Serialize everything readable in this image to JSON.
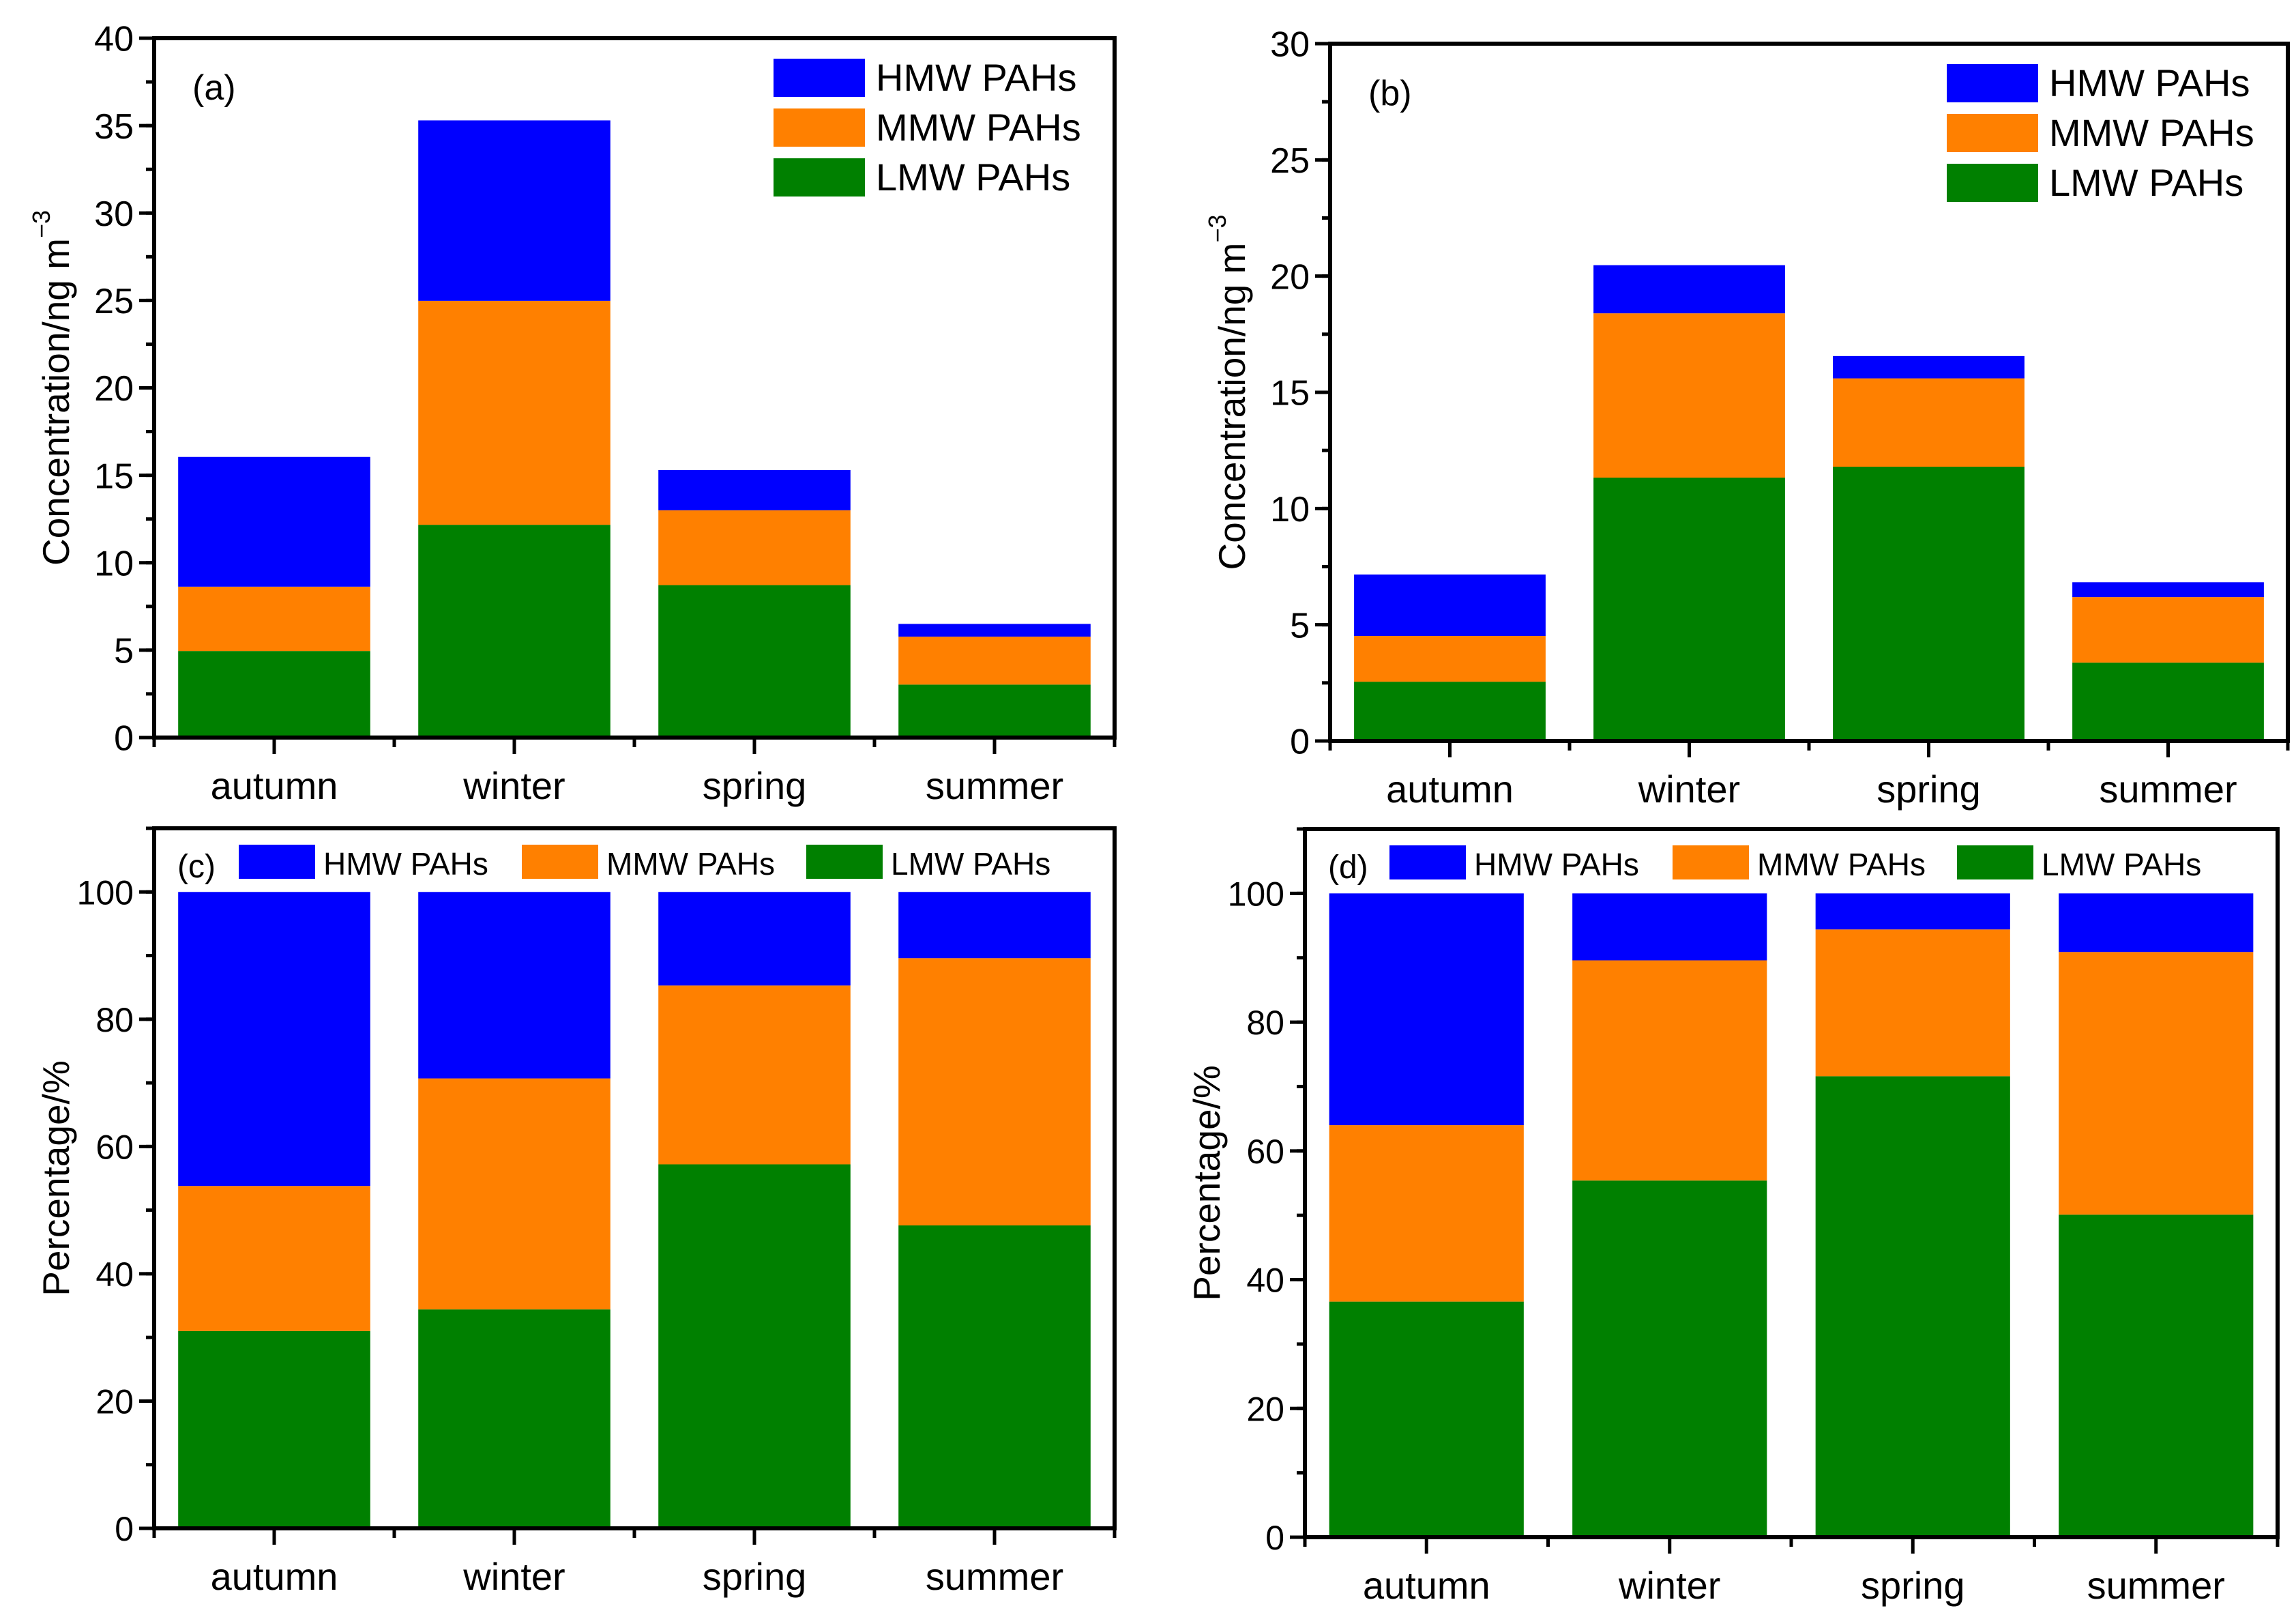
{
  "colors": {
    "HMW": "#0000FF",
    "MMW": "#FF8000",
    "LMW": "#008000",
    "axis": "#000000"
  },
  "chart_data": [
    {
      "panel": "(a)",
      "type": "bar",
      "stacked": true,
      "categories": [
        "autumn",
        "winter",
        "spring",
        "summer"
      ],
      "ylabel": "Concentration/ng m",
      "ylabel_sup": "−3",
      "ylim": [
        0,
        40
      ],
      "yticks": [
        0,
        5,
        10,
        15,
        20,
        25,
        30,
        35,
        40
      ],
      "yminor": 2.5,
      "legend": {
        "placement": "top-right",
        "layout": "vertical",
        "order": [
          "HMW",
          "MMW",
          "LMW"
        ]
      },
      "series": [
        {
          "key": "LMW",
          "name": "LMW PAHs",
          "values": [
            4.95,
            12.17,
            8.72,
            3.03
          ]
        },
        {
          "key": "MMW",
          "name": "MMW PAHs",
          "values": [
            3.68,
            12.81,
            4.28,
            2.74
          ]
        },
        {
          "key": "HMW",
          "name": "HMW PAHs",
          "values": [
            7.42,
            10.32,
            2.3,
            0.73
          ]
        }
      ]
    },
    {
      "panel": "(b)",
      "type": "bar",
      "stacked": true,
      "categories": [
        "autumn",
        "winter",
        "spring",
        "summer"
      ],
      "ylabel": "Concentration/ng m",
      "ylabel_sup": "−3",
      "ylim": [
        0,
        30
      ],
      "yticks": [
        0,
        5,
        10,
        15,
        20,
        25,
        30
      ],
      "yminor": 2.5,
      "legend": {
        "placement": "top-right",
        "layout": "vertical",
        "order": [
          "HMW",
          "MMW",
          "LMW"
        ]
      },
      "series": [
        {
          "key": "LMW",
          "name": "LMW PAHs",
          "values": [
            2.55,
            11.33,
            11.8,
            3.37
          ]
        },
        {
          "key": "MMW",
          "name": "MMW PAHs",
          "values": [
            1.97,
            7.07,
            3.8,
            2.82
          ]
        },
        {
          "key": "HMW",
          "name": "HMW PAHs",
          "values": [
            2.64,
            2.07,
            0.96,
            0.64
          ]
        }
      ]
    },
    {
      "panel": "(c)",
      "type": "bar",
      "stacked": true,
      "categories": [
        "autumn",
        "winter",
        "spring",
        "summer"
      ],
      "ylabel": "Percentage/%",
      "ylabel_sup": "",
      "ylim": [
        0,
        110
      ],
      "yticks": [
        0,
        20,
        40,
        60,
        80,
        100
      ],
      "yminor": 10,
      "legend": {
        "placement": "top",
        "layout": "horizontal",
        "order": [
          "HMW",
          "MMW",
          "LMW"
        ]
      },
      "series": [
        {
          "key": "LMW",
          "name": "LMW PAHs",
          "values": [
            31.0,
            34.4,
            57.2,
            47.6
          ]
        },
        {
          "key": "MMW",
          "name": "MMW PAHs",
          "values": [
            22.8,
            36.3,
            28.1,
            42.0
          ]
        },
        {
          "key": "HMW",
          "name": "HMW PAHs",
          "values": [
            46.2,
            29.3,
            14.7,
            10.4
          ]
        }
      ]
    },
    {
      "panel": "(d)",
      "type": "bar",
      "stacked": true,
      "categories": [
        "autumn",
        "winter",
        "spring",
        "summer"
      ],
      "ylabel": "Percentage/%",
      "ylabel_sup": "",
      "ylim": [
        0,
        110
      ],
      "yticks": [
        0,
        20,
        40,
        60,
        80,
        100
      ],
      "yminor": 10,
      "legend": {
        "placement": "top",
        "layout": "horizontal",
        "order": [
          "HMW",
          "MMW",
          "LMW"
        ]
      },
      "series": [
        {
          "key": "LMW",
          "name": "LMW PAHs",
          "values": [
            36.6,
            55.4,
            71.6,
            50.1
          ]
        },
        {
          "key": "MMW",
          "name": "MMW PAHs",
          "values": [
            27.4,
            34.2,
            22.8,
            40.8
          ]
        },
        {
          "key": "HMW",
          "name": "HMW PAHs",
          "values": [
            36.0,
            10.4,
            5.6,
            9.1
          ]
        }
      ]
    }
  ]
}
